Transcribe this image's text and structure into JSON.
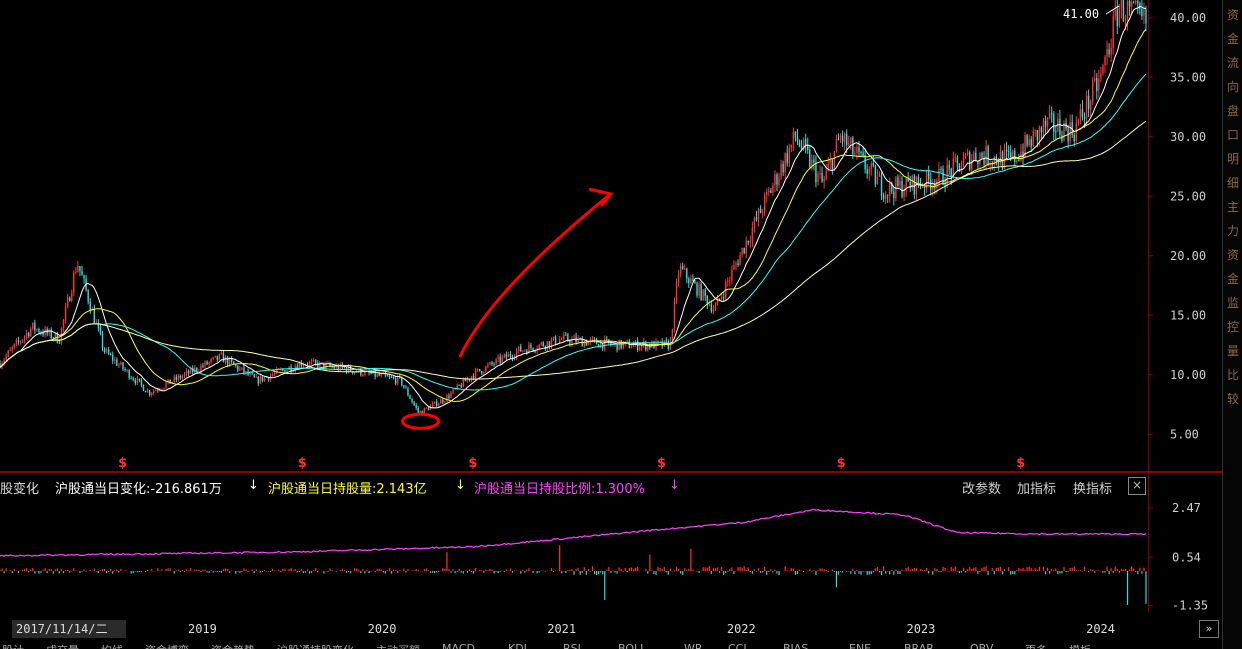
{
  "chart_data": [
    {
      "type": "candlestick",
      "y_axis_ticks": [
        "40.00",
        "35.00",
        "30.00",
        "25.00",
        "20.00",
        "15.00",
        "10.00",
        "5.00"
      ],
      "y_tick_values": [
        40,
        35,
        30,
        25,
        20,
        15,
        10,
        5
      ],
      "ylim": [
        2,
        41.5
      ],
      "high_annotation": "41.00",
      "high_value": 41.0,
      "x_axis_labels": [
        "2019",
        "2020",
        "2021",
        "2022",
        "2023",
        "2024"
      ],
      "x_axis_years": [
        2019,
        2020,
        2021,
        2022,
        2023,
        2024
      ],
      "x_range": [
        2017.87,
        2024.25
      ],
      "dividend_markers": [
        "$",
        "$",
        "$",
        "$",
        "$",
        "$"
      ],
      "dividend_dates": [
        2018.55,
        2019.55,
        2020.5,
        2021.55,
        2022.55,
        2023.55
      ],
      "price_keypoints": [
        [
          2017.87,
          11
        ],
        [
          2018.05,
          14
        ],
        [
          2018.2,
          13
        ],
        [
          2018.3,
          19.5
        ],
        [
          2018.45,
          12
        ],
        [
          2018.7,
          8.5
        ],
        [
          2018.9,
          10
        ],
        [
          2019.1,
          11.5
        ],
        [
          2019.3,
          9.5
        ],
        [
          2019.55,
          11
        ],
        [
          2019.8,
          10.5
        ],
        [
          2020.1,
          9.5
        ],
        [
          2020.2,
          6.8
        ],
        [
          2020.35,
          8
        ],
        [
          2020.5,
          10
        ],
        [
          2020.75,
          12
        ],
        [
          2021.0,
          13
        ],
        [
          2021.3,
          12.5
        ],
        [
          2021.6,
          12.5
        ],
        [
          2021.65,
          19
        ],
        [
          2021.85,
          15.5
        ],
        [
          2022.05,
          22
        ],
        [
          2022.3,
          30
        ],
        [
          2022.45,
          26
        ],
        [
          2022.55,
          30
        ],
        [
          2022.8,
          25.5
        ],
        [
          2023.1,
          26.5
        ],
        [
          2023.3,
          28.5
        ],
        [
          2023.5,
          28
        ],
        [
          2023.7,
          31
        ],
        [
          2023.85,
          30.5
        ],
        [
          2024.0,
          35
        ],
        [
          2024.1,
          41
        ],
        [
          2024.25,
          39.5
        ]
      ],
      "colors": {
        "up": "#ff3333",
        "down": "#33dddd",
        "ma_short": "#ffffff",
        "ma_mid": "#ffff33",
        "ma_long": "#33ffff",
        "ma_year": "#ffffaa",
        "annotation": "#ff0000"
      }
    },
    {
      "type": "bar",
      "y_axis_ticks": [
        "2.47",
        "0.54",
        "-1.35"
      ],
      "y_tick_values": [
        2.47,
        0.54,
        -1.35
      ],
      "ylim": [
        -1.6,
        2.9
      ],
      "holding_ratio_keypoints": [
        [
          2017.87,
          0.6
        ],
        [
          2019.5,
          0.75
        ],
        [
          2020.5,
          0.95
        ],
        [
          2020.9,
          1.2
        ],
        [
          2021.5,
          1.6
        ],
        [
          2022.0,
          1.9
        ],
        [
          2022.4,
          2.4
        ],
        [
          2022.9,
          2.2
        ],
        [
          2023.2,
          1.5
        ],
        [
          2023.7,
          1.45
        ],
        [
          2024.25,
          1.45
        ]
      ],
      "colors": {
        "positive": "#ff3333",
        "negative": "#33dddd",
        "ratio_line": "#ff44ff"
      }
    }
  ],
  "indicator_bar": {
    "prefix": "股变化",
    "change_label": "沪股通当日变化:-216.861万",
    "change_arrow": "↓",
    "holding_label": "沪股通当日持股量:2.143亿",
    "holding_arrow": "↓",
    "ratio_label": "沪股通当日持股比例:1.300%",
    "ratio_arrow": "↓",
    "btn_params": "改参数",
    "btn_add": "加指标",
    "btn_switch": "换指标",
    "btn_close": "×",
    "colors": {
      "change": "#ffffff",
      "holding": "#ffff33",
      "ratio": "#ff44ff"
    }
  },
  "date_label": "2017/11/14/二",
  "bottom_tabs": [
    "股计",
    "成交量",
    "均线",
    "资金博弈",
    "资金趋势",
    "沪股通持股变化",
    "主动买额",
    "MACD",
    "KDJ",
    "RSI",
    "BOLL",
    "WR",
    "CCI",
    "BIAS",
    "ENE",
    "BRAR",
    "OBV",
    "更多",
    "模板"
  ],
  "right_panel_chars": [
    "资",
    "金",
    "流",
    "向",
    "盘",
    "口",
    "明",
    "细",
    "主",
    "力",
    "资",
    "金",
    "监",
    "控",
    "量",
    "比",
    "较"
  ],
  "scroll_button": "»"
}
